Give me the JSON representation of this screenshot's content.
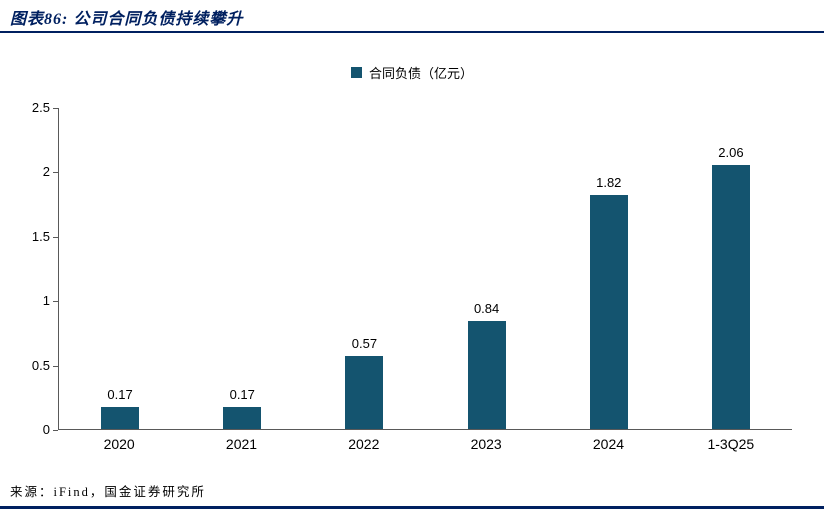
{
  "header": {
    "title": "图表86: 公司合同负债持续攀升"
  },
  "legend": {
    "label": "合同负债（亿元）"
  },
  "footer": {
    "source": "来源：iFind，国金证券研究所"
  },
  "colors": {
    "bar": "#14546f",
    "title_text": "#002060",
    "rule": "#002060",
    "axis": "#595959",
    "label_text": "#000000"
  },
  "chart_data": {
    "type": "bar",
    "categories": [
      "2020",
      "2021",
      "2022",
      "2023",
      "2024",
      "1-3Q25"
    ],
    "values": [
      0.17,
      0.17,
      0.57,
      0.84,
      1.82,
      2.06
    ],
    "series_name": "合同负债（亿元）",
    "title": "图表86: 公司合同负债持续攀升",
    "xlabel": "",
    "ylabel": "",
    "ylim": [
      0,
      2.5
    ],
    "yticks": [
      0,
      0.5,
      1,
      1.5,
      2,
      2.5
    ],
    "grid": false,
    "legend_position": "top-center",
    "value_labels": true
  }
}
